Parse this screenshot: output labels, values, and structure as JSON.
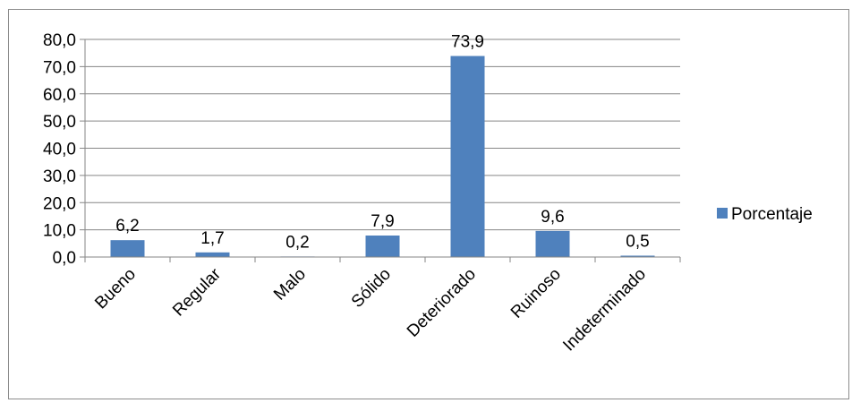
{
  "chart_data": {
    "type": "bar",
    "categories": [
      "Bueno",
      "Regular",
      "Malo",
      "Sólido",
      "Deteriorado",
      "Ruinoso",
      "Indeterminado"
    ],
    "series": [
      {
        "name": "Porcentaje",
        "values": [
          6.2,
          1.7,
          0.2,
          7.9,
          73.9,
          9.6,
          0.5
        ],
        "data_labels": [
          "6,2",
          "1,7",
          "0,2",
          "7,9",
          "73,9",
          "9,6",
          "0,5"
        ],
        "color": "#4f81bd"
      }
    ],
    "ylim": [
      0,
      80
    ],
    "yticks": [
      0,
      10,
      20,
      30,
      40,
      50,
      60,
      70,
      80
    ],
    "ytick_labels": [
      "0,0",
      "10,0",
      "20,0",
      "30,0",
      "40,0",
      "50,0",
      "60,0",
      "70,0",
      "80,0"
    ],
    "grid": true,
    "legend_position": "right"
  }
}
